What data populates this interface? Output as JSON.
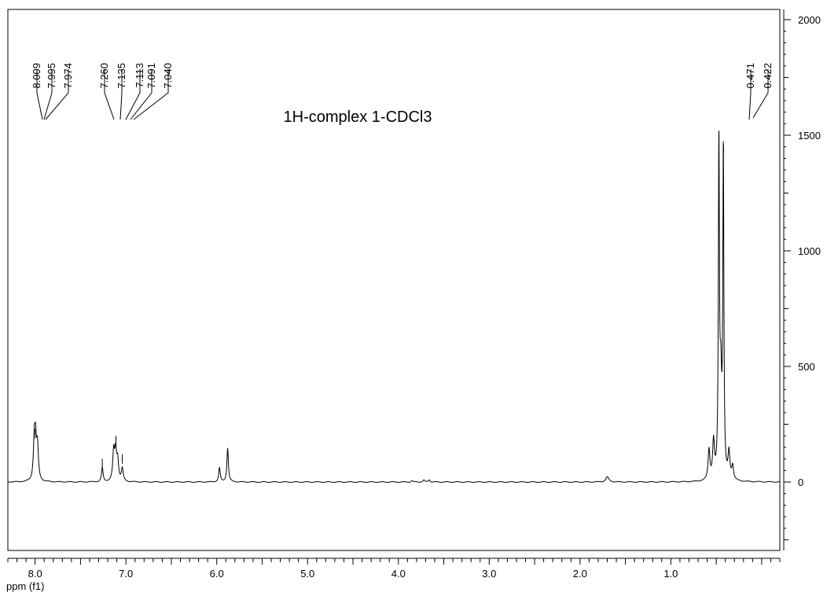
{
  "chart_data": {
    "type": "line",
    "title": "1H-complex 1-CDCl3",
    "xlabel": "ppm (f1)",
    "ylabel": "",
    "x_reversed": true,
    "xlim": [
      8.3,
      -0.2
    ],
    "ylim": [
      -300,
      2000
    ],
    "x_ticks": [
      8.0,
      7.0,
      6.0,
      5.0,
      4.0,
      3.0,
      2.0,
      1.0
    ],
    "x_tick_labels": [
      "8.0",
      "7.0",
      "6.0",
      "5.0",
      "4.0",
      "3.0",
      "2.0",
      "1.0"
    ],
    "y_ticks": [
      0,
      500,
      1000,
      1500,
      2000
    ],
    "y_tick_labels": [
      "0",
      "500",
      "1000",
      "1500",
      "2000"
    ],
    "peak_labels": [
      "8.009",
      "7.995",
      "7.974",
      "7.260",
      "7.135",
      "7.113",
      "7.091",
      "7.040",
      "0.471",
      "0.422"
    ],
    "peak_positions": [
      8.009,
      7.995,
      7.974,
      7.26,
      7.135,
      7.113,
      7.091,
      7.04,
      0.471,
      0.422
    ],
    "integration_marks": [
      {
        "ppm": 8.0,
        "intensity": 230
      },
      {
        "ppm": 7.26,
        "intensity": 100
      },
      {
        "ppm": 7.11,
        "intensity": 200
      },
      {
        "ppm": 7.04,
        "intensity": 120
      },
      {
        "ppm": 0.42,
        "intensity": 1460
      }
    ],
    "peaks": [
      {
        "ppm": 8.009,
        "height": 165,
        "width": 0.012
      },
      {
        "ppm": 7.995,
        "height": 150,
        "width": 0.012
      },
      {
        "ppm": 7.974,
        "height": 140,
        "width": 0.012
      },
      {
        "ppm": 7.26,
        "height": 60,
        "width": 0.01
      },
      {
        "ppm": 7.135,
        "height": 125,
        "width": 0.012
      },
      {
        "ppm": 7.113,
        "height": 120,
        "width": 0.012
      },
      {
        "ppm": 7.091,
        "height": 85,
        "width": 0.012
      },
      {
        "ppm": 7.04,
        "height": 55,
        "width": 0.012
      },
      {
        "ppm": 5.97,
        "height": 60,
        "width": 0.01
      },
      {
        "ppm": 5.88,
        "height": 145,
        "width": 0.01
      },
      {
        "ppm": 3.85,
        "height": 6,
        "width": 0.01
      },
      {
        "ppm": 3.72,
        "height": 8,
        "width": 0.01
      },
      {
        "ppm": 3.66,
        "height": 10,
        "width": 0.01
      },
      {
        "ppm": 1.7,
        "height": 22,
        "width": 0.02
      },
      {
        "ppm": 0.58,
        "height": 130,
        "width": 0.012
      },
      {
        "ppm": 0.53,
        "height": 160,
        "width": 0.012
      },
      {
        "ppm": 0.471,
        "height": 1400,
        "width": 0.007
      },
      {
        "ppm": 0.422,
        "height": 1380,
        "width": 0.007
      },
      {
        "ppm": 0.45,
        "height": 380,
        "width": 0.012
      },
      {
        "ppm": 0.36,
        "height": 115,
        "width": 0.012
      },
      {
        "ppm": 0.32,
        "height": 60,
        "width": 0.012
      }
    ]
  }
}
